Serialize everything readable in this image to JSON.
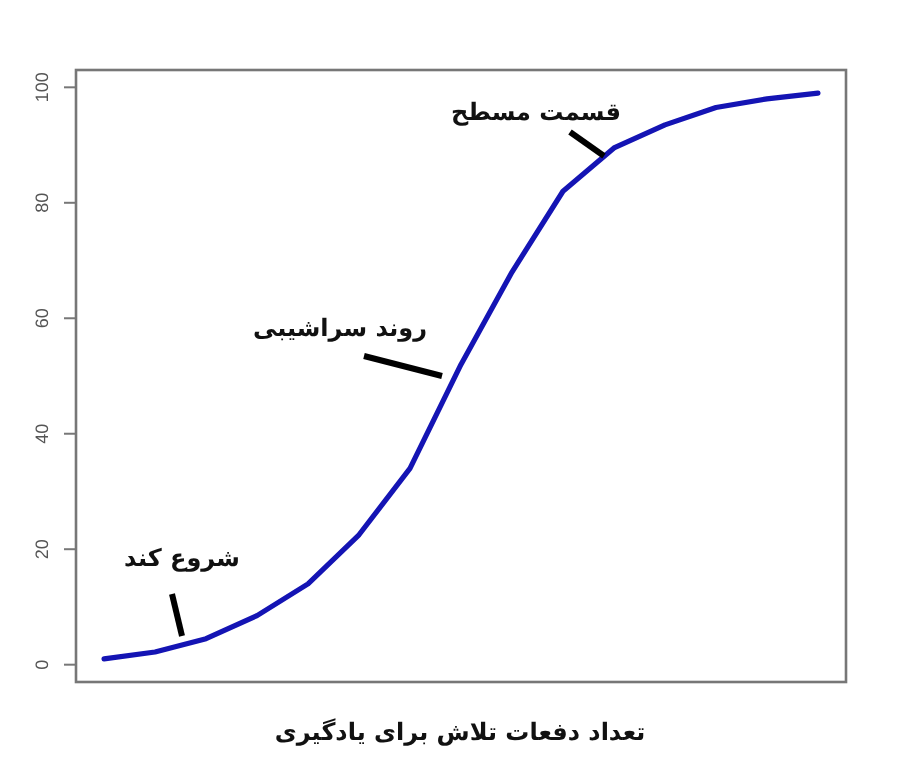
{
  "chart_data": {
    "type": "line",
    "xlabel": "تعداد دفعات تلاش برای یادگیری",
    "categories": [
      null,
      null,
      null,
      null,
      null,
      null,
      null,
      null,
      null,
      null,
      null,
      null,
      null,
      null,
      null
    ],
    "series": [
      {
        "color": "#1414b4",
        "values": [
          1,
          2.2,
          4.5,
          8.5,
          14,
          22.5,
          34,
          52,
          68,
          82,
          89.5,
          93.5,
          96.5,
          98,
          99
        ]
      }
    ],
    "ylim": [
      -3,
      103
    ],
    "yticks": [
      0,
      20,
      40,
      60,
      80,
      100
    ],
    "tick_labels": "y",
    "grid": false,
    "annotations": [
      "شروع کند",
      "روند سراشیبی",
      "قسمت مسطح"
    ]
  }
}
